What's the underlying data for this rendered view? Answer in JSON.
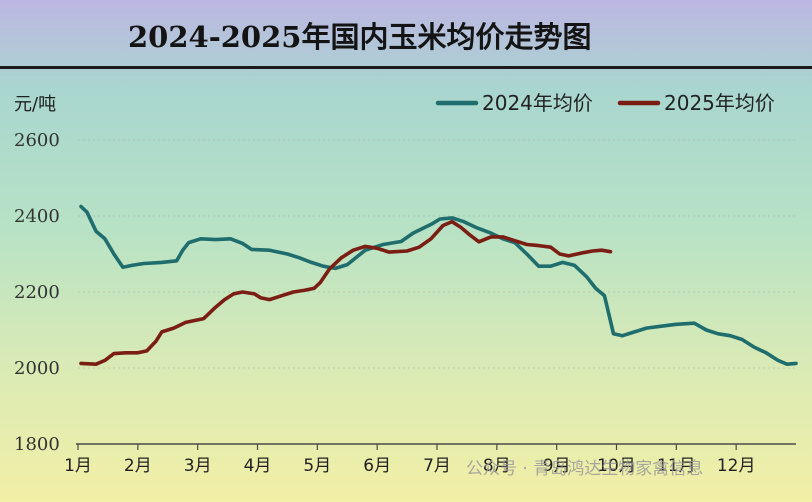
{
  "chart_data": {
    "type": "line",
    "title": "2024-2025年国内玉米均价走势图",
    "ylabel": "元/吨",
    "ylim": [
      1800,
      2600
    ],
    "yticks": [
      1800,
      2000,
      2200,
      2400,
      2600
    ],
    "xlim": [
      1,
      13
    ],
    "xticks": [
      "1月",
      "2月",
      "3月",
      "4月",
      "5月",
      "6月",
      "7月",
      "8月",
      "9月",
      "10月",
      "11月",
      "12月"
    ],
    "grid": "horizontal",
    "legend_position": "top-right",
    "series": [
      {
        "name": "2024年均价",
        "color": "#1f6d6d",
        "points": [
          [
            1.05,
            2425
          ],
          [
            1.15,
            2410
          ],
          [
            1.3,
            2360
          ],
          [
            1.45,
            2340
          ],
          [
            1.6,
            2300
          ],
          [
            1.75,
            2265
          ],
          [
            1.9,
            2270
          ],
          [
            2.1,
            2275
          ],
          [
            2.4,
            2278
          ],
          [
            2.65,
            2282
          ],
          [
            2.75,
            2310
          ],
          [
            2.85,
            2330
          ],
          [
            3.05,
            2340
          ],
          [
            3.3,
            2338
          ],
          [
            3.55,
            2340
          ],
          [
            3.75,
            2328
          ],
          [
            3.9,
            2312
          ],
          [
            4.2,
            2310
          ],
          [
            4.5,
            2300
          ],
          [
            4.7,
            2290
          ],
          [
            4.9,
            2278
          ],
          [
            5.1,
            2268
          ],
          [
            5.3,
            2262
          ],
          [
            5.5,
            2272
          ],
          [
            5.8,
            2310
          ],
          [
            6.1,
            2325
          ],
          [
            6.4,
            2333
          ],
          [
            6.6,
            2355
          ],
          [
            6.9,
            2378
          ],
          [
            7.05,
            2392
          ],
          [
            7.25,
            2395
          ],
          [
            7.45,
            2385
          ],
          [
            7.65,
            2370
          ],
          [
            7.9,
            2355
          ],
          [
            8.1,
            2340
          ],
          [
            8.3,
            2330
          ],
          [
            8.5,
            2300
          ],
          [
            8.7,
            2268
          ],
          [
            8.9,
            2268
          ],
          [
            9.1,
            2278
          ],
          [
            9.3,
            2270
          ],
          [
            9.5,
            2240
          ],
          [
            9.65,
            2210
          ],
          [
            9.8,
            2190
          ],
          [
            9.95,
            2090
          ],
          [
            10.1,
            2085
          ],
          [
            10.3,
            2095
          ],
          [
            10.5,
            2105
          ],
          [
            10.75,
            2110
          ],
          [
            11.0,
            2115
          ],
          [
            11.3,
            2118
          ],
          [
            11.5,
            2100
          ],
          [
            11.7,
            2090
          ],
          [
            11.9,
            2085
          ],
          [
            12.1,
            2075
          ],
          [
            12.3,
            2055
          ],
          [
            12.5,
            2040
          ],
          [
            12.7,
            2020
          ],
          [
            12.85,
            2010
          ],
          [
            13.0,
            2012
          ]
        ]
      },
      {
        "name": "2025年均价",
        "color": "#7a1e14",
        "points": [
          [
            1.05,
            2012
          ],
          [
            1.3,
            2010
          ],
          [
            1.45,
            2020
          ],
          [
            1.6,
            2038
          ],
          [
            1.8,
            2040
          ],
          [
            2.0,
            2040
          ],
          [
            2.15,
            2045
          ],
          [
            2.3,
            2070
          ],
          [
            2.4,
            2095
          ],
          [
            2.6,
            2105
          ],
          [
            2.8,
            2120
          ],
          [
            3.1,
            2130
          ],
          [
            3.3,
            2160
          ],
          [
            3.45,
            2180
          ],
          [
            3.6,
            2195
          ],
          [
            3.75,
            2200
          ],
          [
            3.95,
            2195
          ],
          [
            4.05,
            2185
          ],
          [
            4.2,
            2180
          ],
          [
            4.4,
            2190
          ],
          [
            4.6,
            2200
          ],
          [
            4.8,
            2205
          ],
          [
            4.95,
            2210
          ],
          [
            5.05,
            2225
          ],
          [
            5.2,
            2260
          ],
          [
            5.4,
            2290
          ],
          [
            5.6,
            2310
          ],
          [
            5.8,
            2320
          ],
          [
            6.0,
            2315
          ],
          [
            6.2,
            2305
          ],
          [
            6.5,
            2308
          ],
          [
            6.7,
            2318
          ],
          [
            6.9,
            2340
          ],
          [
            7.1,
            2375
          ],
          [
            7.25,
            2385
          ],
          [
            7.4,
            2370
          ],
          [
            7.55,
            2350
          ],
          [
            7.7,
            2332
          ],
          [
            7.9,
            2345
          ],
          [
            8.1,
            2345
          ],
          [
            8.3,
            2335
          ],
          [
            8.5,
            2325
          ],
          [
            8.7,
            2322
          ],
          [
            8.9,
            2318
          ],
          [
            9.05,
            2300
          ],
          [
            9.2,
            2295
          ],
          [
            9.4,
            2302
          ],
          [
            9.6,
            2308
          ],
          [
            9.75,
            2310
          ],
          [
            9.9,
            2306
          ]
        ]
      }
    ]
  },
  "watermark": "公众号 · 青岛鸿达生物家禽信息"
}
